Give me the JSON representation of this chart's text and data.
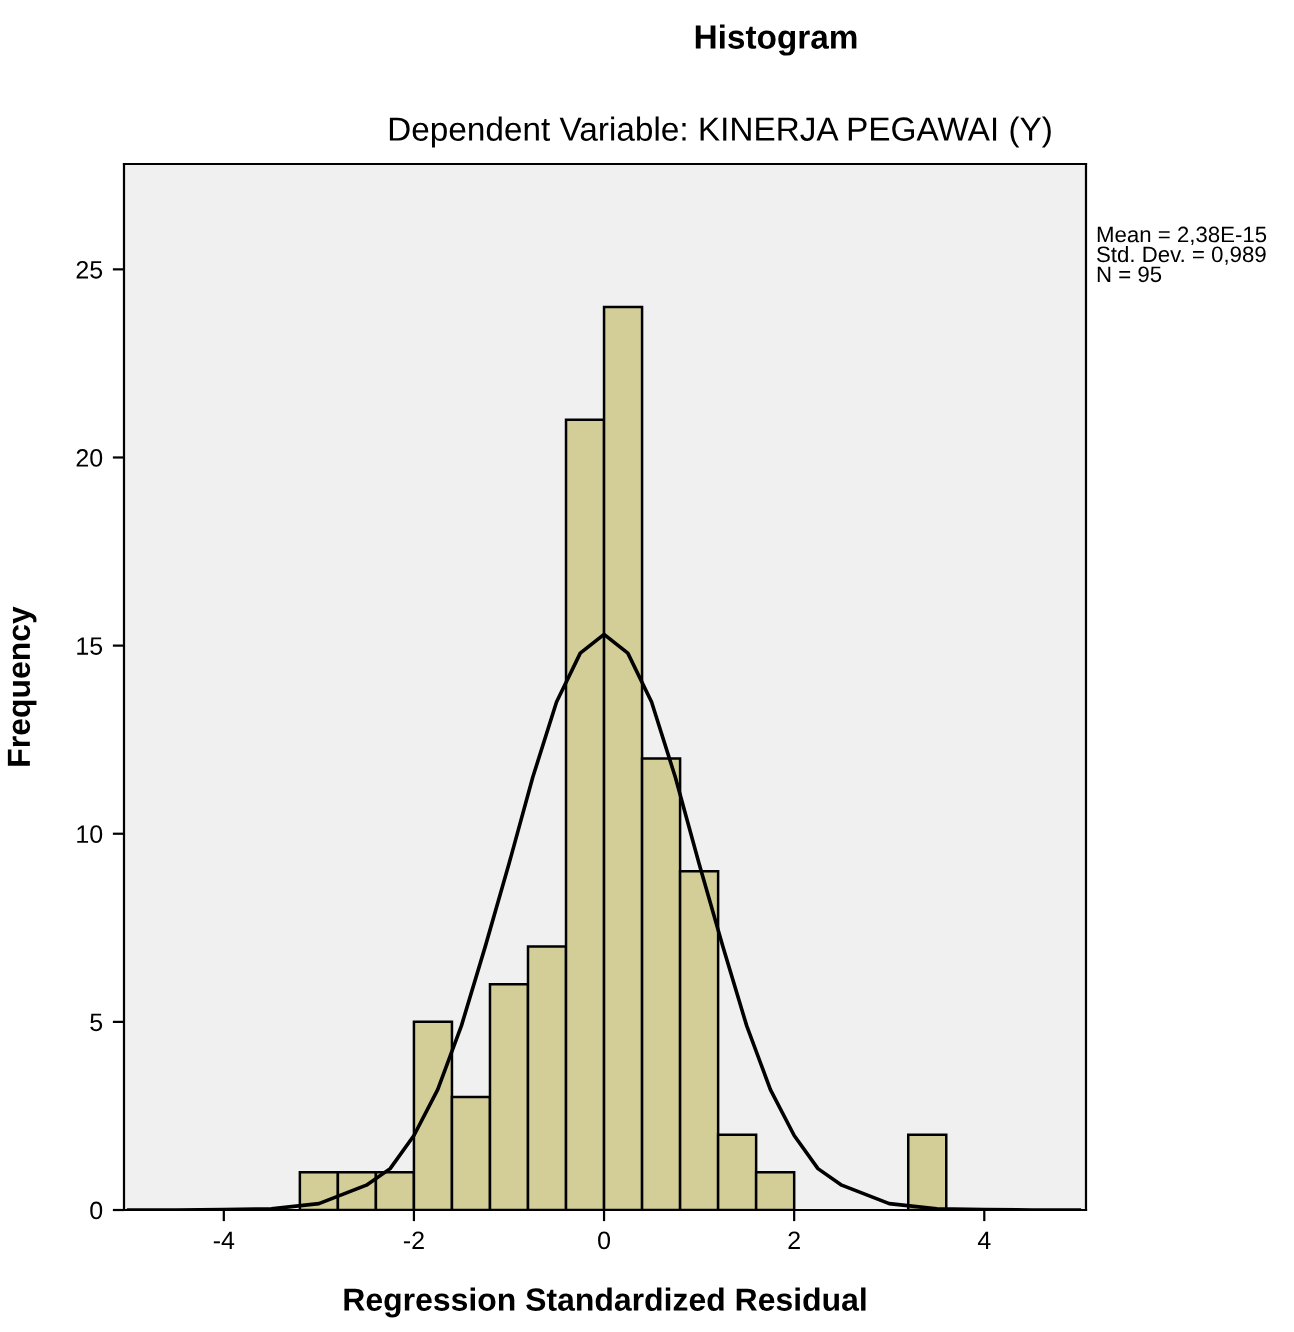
{
  "chart_data": {
    "type": "histogram",
    "title": "Histogram",
    "subtitle": "Dependent Variable: KINERJA PEGAWAI (Y)",
    "xlabel": "Regression Standardized Residual",
    "ylabel": "Frequency",
    "bins": [
      -3.2,
      -2.8,
      -2.4,
      -2.0,
      -1.6,
      -1.2,
      -0.8,
      -0.4,
      0,
      0.4,
      0.8,
      1.2,
      1.6,
      2.0,
      2.4,
      2.8,
      3.2,
      3.6
    ],
    "values": [
      1,
      1,
      1,
      5,
      3,
      6,
      7,
      21,
      24,
      12,
      9,
      2,
      1,
      0,
      0,
      0,
      2
    ],
    "color": "#d3ce97",
    "series": [
      {
        "type": "line",
        "color": "#000000",
        "x": [
          -5,
          -4.5,
          -4,
          -3.5,
          -3,
          -2.5,
          -2.25,
          -2,
          -1.75,
          -1.5,
          -1.25,
          -1,
          -0.75,
          -0.5,
          -0.25,
          0,
          0.25,
          0.5,
          0.75,
          1,
          1.25,
          1.5,
          1.75,
          2,
          2.25,
          2.5,
          3,
          3.5,
          4,
          4.5,
          5
        ],
        "values": [
          0,
          0,
          0.01,
          0.03,
          0.17,
          0.66,
          1.1,
          1.98,
          3.2,
          4.9,
          7.0,
          9.2,
          11.5,
          13.5,
          14.8,
          15.3,
          14.8,
          13.5,
          11.5,
          9.2,
          7.0,
          4.9,
          3.2,
          1.98,
          1.1,
          0.66,
          0.17,
          0.03,
          0.01,
          0,
          0
        ]
      }
    ],
    "xlim": [
      -5.05,
      5.07
    ],
    "ylim": [
      0,
      27.8
    ],
    "xticks": [
      {
        "value": -4,
        "label": "-4"
      },
      {
        "value": -2,
        "label": "-2"
      },
      0,
      2,
      4
    ],
    "yticks": [
      0,
      5,
      10,
      15,
      20,
      25
    ],
    "grid": false,
    "annotations": [
      "Mean = 2,38E-15\nStd. Dev. = 0,989\nN = 95"
    ]
  }
}
